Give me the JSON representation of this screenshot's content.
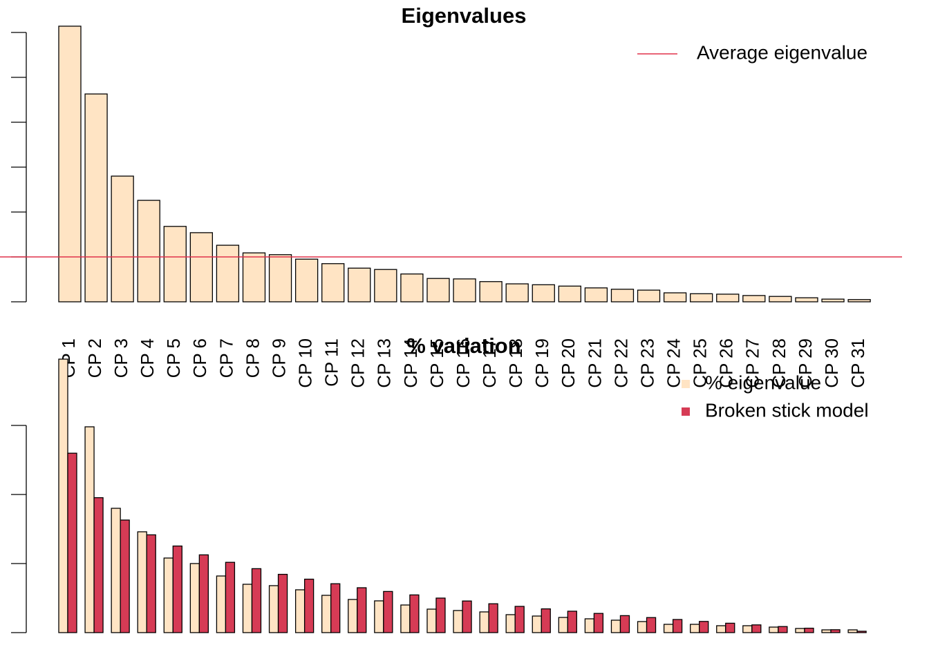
{
  "chart_data": [
    {
      "type": "bar",
      "title": "Eigenvalues",
      "categories": [
        "CP 1",
        "CP 2",
        "CP 3",
        "CP 4",
        "CP 5",
        "CP 6",
        "CP 7",
        "CP 8",
        "CP 9",
        "CP 10",
        "CP 11",
        "CP 12",
        "CP 13",
        "CP 14",
        "CP 15",
        "CP 16",
        "CP 17",
        "CP 18",
        "CP 19",
        "CP 20",
        "CP 21",
        "CP 22",
        "CP 23",
        "CP 24",
        "CP 25",
        "CP 26",
        "CP 27",
        "CP 28",
        "CP 29",
        "CP 30",
        "CP 31"
      ],
      "values": [
        6.14,
        4.63,
        2.8,
        2.26,
        1.68,
        1.54,
        1.26,
        1.09,
        1.05,
        0.95,
        0.85,
        0.75,
        0.72,
        0.62,
        0.52,
        0.51,
        0.45,
        0.4,
        0.38,
        0.35,
        0.31,
        0.28,
        0.26,
        0.2,
        0.18,
        0.17,
        0.14,
        0.12,
        0.09,
        0.06,
        0.05
      ],
      "color": "#FFE4C4",
      "reference_line": {
        "name": "Average eigenvalue",
        "value": 1,
        "color": "#E0304A"
      },
      "ylim": [
        0,
        6.2
      ],
      "yticks": [
        0,
        1,
        2,
        3,
        4,
        5,
        6
      ],
      "legend": "top-right"
    },
    {
      "type": "grouped-bar",
      "title": "% variation",
      "series": [
        {
          "name": "% eigenvalue",
          "color": "#FFE4C4",
          "values": [
            19.8,
            14.9,
            9.0,
            7.3,
            5.4,
            5.0,
            4.1,
            3.5,
            3.4,
            3.1,
            2.7,
            2.4,
            2.3,
            2.0,
            1.7,
            1.6,
            1.5,
            1.3,
            1.2,
            1.1,
            1.0,
            0.9,
            0.8,
            0.6,
            0.6,
            0.5,
            0.5,
            0.4,
            0.3,
            0.2,
            0.2
          ]
        },
        {
          "name": "Broken stick model",
          "color": "#D63B55",
          "values": [
            12.99,
            9.77,
            8.15,
            7.08,
            6.27,
            5.63,
            5.09,
            4.63,
            4.22,
            3.87,
            3.54,
            3.25,
            2.98,
            2.73,
            2.5,
            2.29,
            2.09,
            1.9,
            1.72,
            1.55,
            1.39,
            1.23,
            1.09,
            0.95,
            0.81,
            0.68,
            0.56,
            0.44,
            0.32,
            0.21,
            0.1
          ]
        }
      ],
      "ylim": [
        0,
        20
      ],
      "yticks": [
        0,
        5,
        10,
        15
      ],
      "legend": "top-right"
    }
  ]
}
